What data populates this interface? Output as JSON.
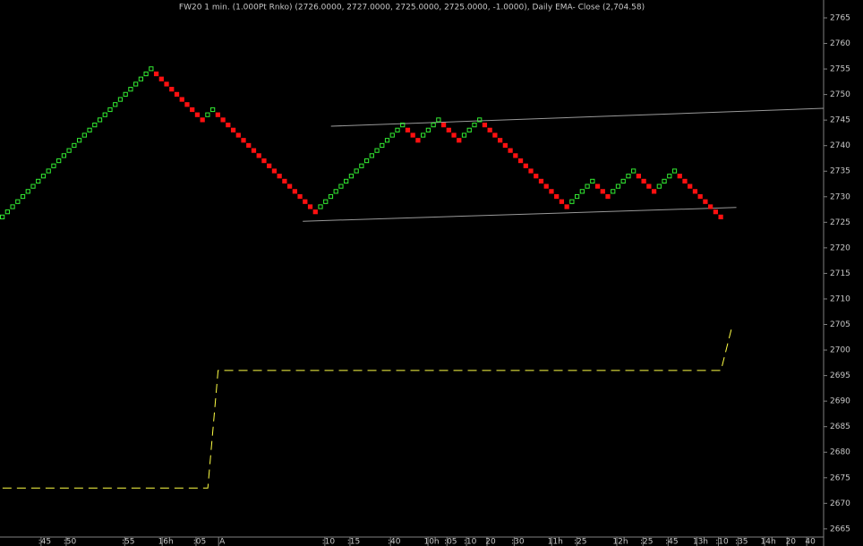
{
  "chart_data": {
    "type": "renko",
    "title": "FW20 1 min. (1.000Pt Rnko)  (2726.0000, 2727.0000, 2725.0000, 2725.0000, -1.0000), Daily EMA- Close (2,704.58)",
    "bricks": {
      "up_color": "#33ee33",
      "down_color": "#ff1111",
      "values": [
        2726,
        2727,
        2728,
        2729,
        2730,
        2731,
        2732,
        2733,
        2734,
        2735,
        2736,
        2737,
        2738,
        2739,
        2740,
        2741,
        2742,
        2743,
        2744,
        2745,
        2746,
        2747,
        2748,
        2749,
        2750,
        2751,
        2752,
        2753,
        2754,
        2755,
        2754,
        2753,
        2752,
        2751,
        2750,
        2749,
        2748,
        2747,
        2746,
        2745,
        2746,
        2747,
        2746,
        2745,
        2744,
        2743,
        2742,
        2741,
        2740,
        2739,
        2738,
        2737,
        2736,
        2735,
        2734,
        2733,
        2732,
        2731,
        2730,
        2729,
        2728,
        2727,
        2728,
        2729,
        2730,
        2731,
        2732,
        2733,
        2734,
        2735,
        2736,
        2737,
        2738,
        2739,
        2740,
        2741,
        2742,
        2743,
        2744,
        2743,
        2742,
        2741,
        2742,
        2743,
        2744,
        2745,
        2744,
        2743,
        2742,
        2741,
        2742,
        2743,
        2744,
        2745,
        2744,
        2743,
        2742,
        2741,
        2740,
        2739,
        2738,
        2737,
        2736,
        2735,
        2734,
        2733,
        2732,
        2731,
        2730,
        2729,
        2728,
        2729,
        2730,
        2731,
        2732,
        2733,
        2732,
        2731,
        2730,
        2731,
        2732,
        2733,
        2734,
        2735,
        2734,
        2733,
        2732,
        2731,
        2732,
        2733,
        2734,
        2735,
        2734,
        2733,
        2732,
        2731,
        2730,
        2729,
        2728,
        2727,
        2726
      ]
    },
    "ema": {
      "color": "#ffff44",
      "x": [
        0,
        40,
        42,
        140,
        142
      ],
      "values": [
        2673,
        2673,
        2696,
        2696,
        2704
      ]
    },
    "trendlines": {
      "color": "#999999",
      "lines": [
        {
          "x": [
            64,
            160
          ],
          "values": [
            2743.8,
            2747.3
          ]
        },
        {
          "x": [
            58.5,
            143
          ],
          "values": [
            2725.2,
            2727.9
          ]
        }
      ]
    },
    "xlim": [
      -0.5,
      160
    ],
    "ylim": [
      2663.4,
      2768.5
    ],
    "yticks": [
      2665,
      2670,
      2675,
      2680,
      2685,
      2690,
      2695,
      2700,
      2705,
      2710,
      2715,
      2720,
      2725,
      2730,
      2735,
      2740,
      2745,
      2750,
      2755,
      2760,
      2765
    ],
    "xticks": [
      {
        "value": 8.2,
        "label": ":45"
      },
      {
        "value": 13.1,
        "label": ":50"
      },
      {
        "value": 24.5,
        "label": ":55"
      },
      {
        "value": 31.8,
        "label": "16h"
      },
      {
        "value": 38.4,
        "label": ":05"
      },
      {
        "value": 42.8,
        "label": "A"
      },
      {
        "value": 63.5,
        "label": ":10"
      },
      {
        "value": 68.4,
        "label": ":15"
      },
      {
        "value": 76.3,
        "label": ":40"
      },
      {
        "value": 83.6,
        "label": "10h"
      },
      {
        "value": 87.3,
        "label": ":05"
      },
      {
        "value": 91.1,
        "label": ":10"
      },
      {
        "value": 95.1,
        "label": "20"
      },
      {
        "value": 100.4,
        "label": ":30"
      },
      {
        "value": 107.7,
        "label": "11h"
      },
      {
        "value": 112.6,
        "label": ":25"
      },
      {
        "value": 120.4,
        "label": "12h"
      },
      {
        "value": 125.5,
        "label": ":25"
      },
      {
        "value": 130.4,
        "label": ":45"
      },
      {
        "value": 136,
        "label": "13h"
      },
      {
        "value": 140.2,
        "label": ":10"
      },
      {
        "value": 144,
        "label": ":35"
      },
      {
        "value": 149.2,
        "label": "14h"
      },
      {
        "value": 153.6,
        "label": "20"
      },
      {
        "value": 157.4,
        "label": "40"
      }
    ]
  }
}
